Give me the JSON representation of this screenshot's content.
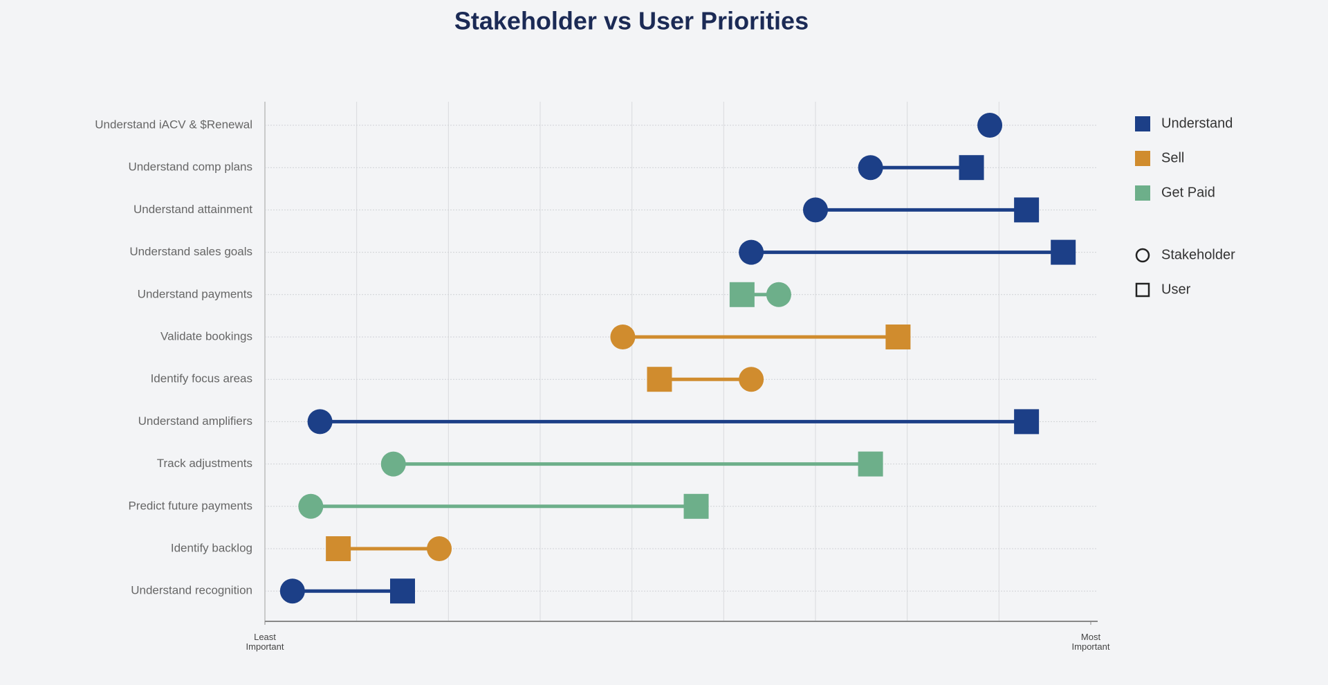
{
  "chart_data": {
    "type": "dumbbell",
    "title": "Stakeholder vs User Priorities",
    "categories": [
      "Understand iACV & $Renewal",
      "Understand comp plans",
      "Understand attainment",
      "Understand sales goals",
      "Understand payments",
      "Validate bookings",
      "Identify focus areas",
      "Understand amplifiers",
      "Track adjustments",
      "Predict future payments",
      "Identify backlog",
      "Understand recognition"
    ],
    "groups": [
      {
        "name": "Understand",
        "color": "#1c3f87"
      },
      {
        "name": "Sell",
        "color": "#d08c2e"
      },
      {
        "name": "Get Paid",
        "color": "#6daf8a"
      }
    ],
    "category_group": [
      0,
      0,
      0,
      0,
      2,
      1,
      1,
      0,
      2,
      2,
      1,
      0
    ],
    "series": [
      {
        "name": "Stakeholder",
        "marker": "circle",
        "values": [
          7.9,
          6.6,
          6.0,
          5.3,
          5.6,
          3.9,
          5.3,
          0.6,
          1.4,
          0.5,
          1.9,
          0.3
        ]
      },
      {
        "name": "User",
        "marker": "square",
        "values": [
          null,
          7.7,
          8.3,
          8.7,
          5.2,
          6.9,
          4.3,
          8.3,
          6.6,
          4.7,
          0.8,
          1.5
        ]
      }
    ],
    "xlim": [
      0,
      9
    ],
    "xticks": [
      {
        "value": 0,
        "label": "Least Important"
      },
      {
        "value": 9,
        "label": "Most Important"
      }
    ],
    "grid": true
  }
}
